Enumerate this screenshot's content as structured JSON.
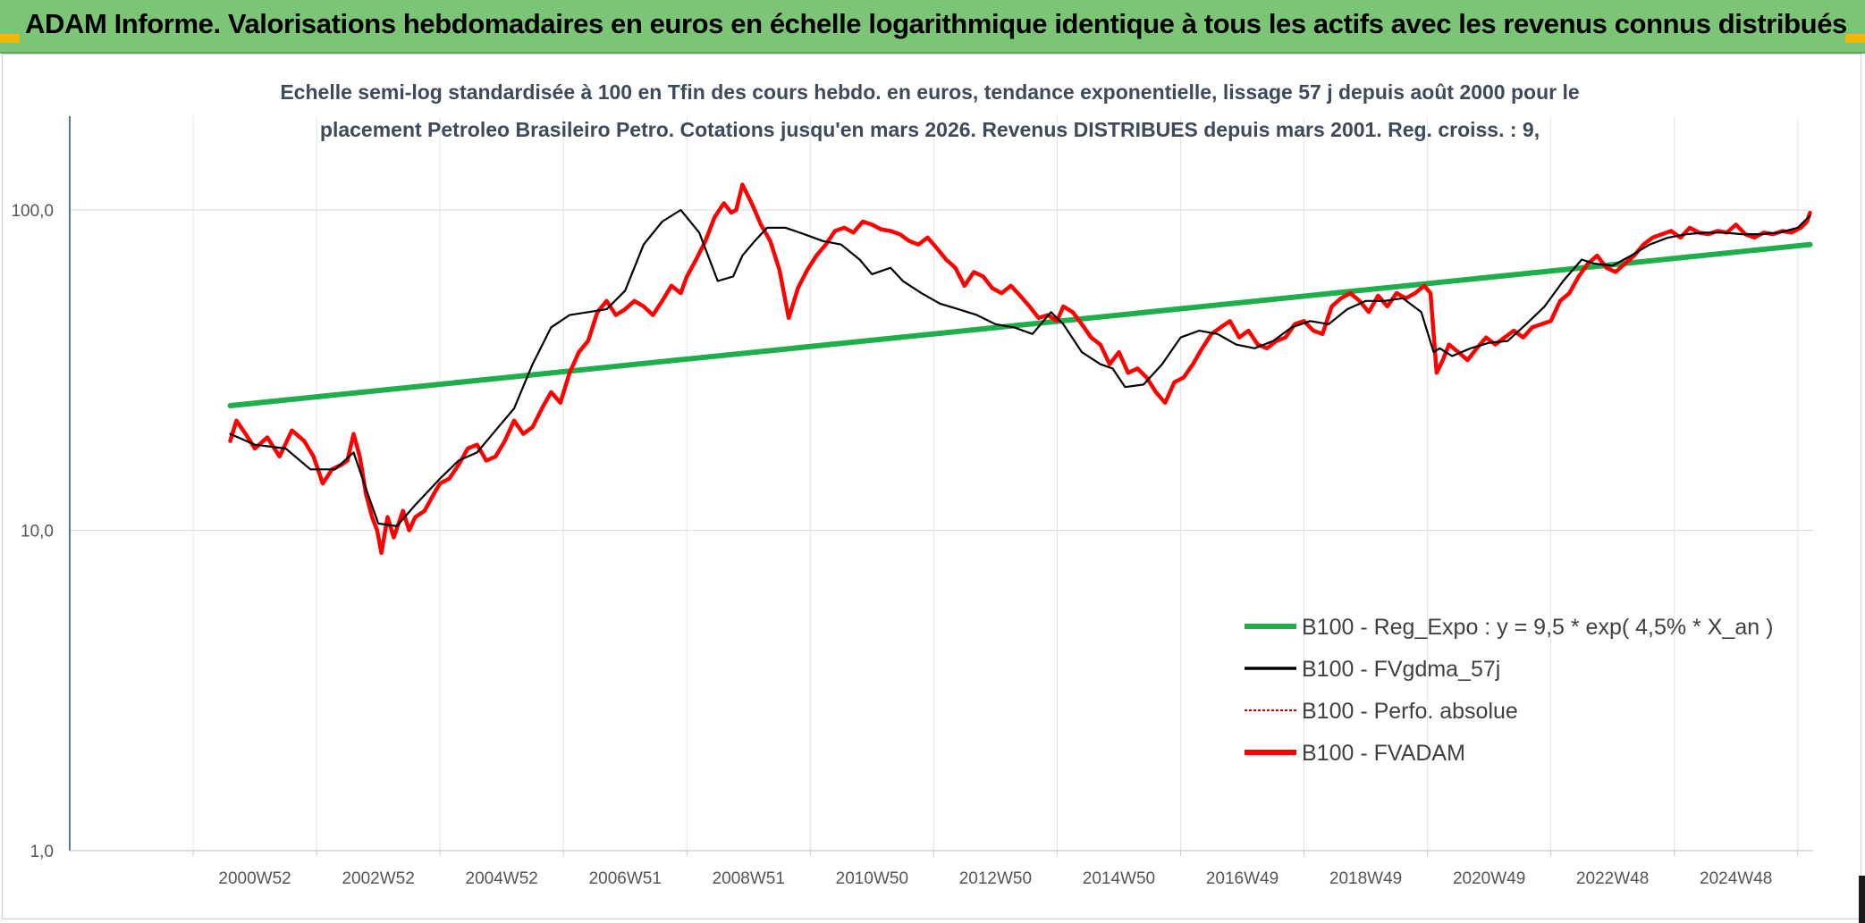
{
  "header": {
    "title": "ADAM Informe. Valorisations hebdomadaires en euros en échelle logarithmique identique à tous les actifs avec les revenus connus distribués"
  },
  "chart_data": {
    "type": "line",
    "subtitle_lines": [
      "Echelle semi-log standardisée à 100 en Tfin des cours hebdo. en euros, tendance exponentielle, lissage 57 j depuis août 2000 pour le",
      "placement Petroleo Brasileiro Petro. Cotations jusqu'en mars 2026. Revenus DISTRIBUES depuis mars 2001. Reg. croiss. : 9,"
    ],
    "y_scale": "log",
    "ylim": [
      1,
      180
    ],
    "y_ticks": [
      {
        "value": 1,
        "label": "1,0"
      },
      {
        "value": 10,
        "label": "10,0"
      },
      {
        "value": 100,
        "label": "100,0"
      }
    ],
    "xlim": [
      1998.0,
      2026.25
    ],
    "x_ticks": [
      {
        "value": 2001.0,
        "label": "2000W52"
      },
      {
        "value": 2003.0,
        "label": "2002W52"
      },
      {
        "value": 2005.0,
        "label": "2004W52"
      },
      {
        "value": 2007.0,
        "label": "2006W51"
      },
      {
        "value": 2009.0,
        "label": "2008W51"
      },
      {
        "value": 2011.0,
        "label": "2010W50"
      },
      {
        "value": 2013.0,
        "label": "2012W50"
      },
      {
        "value": 2015.0,
        "label": "2014W50"
      },
      {
        "value": 2017.0,
        "label": "2016W49"
      },
      {
        "value": 2019.0,
        "label": "2018W49"
      },
      {
        "value": 2021.0,
        "label": "2020W49"
      },
      {
        "value": 2023.0,
        "label": "2022W48"
      },
      {
        "value": 2025.0,
        "label": "2024W48"
      }
    ],
    "grid": true,
    "legend_position": "bottom-right",
    "colors": {
      "regression": "#1fae4b",
      "moving_average": "#000000",
      "absolute": "#c00000",
      "adam": "#ff0000"
    },
    "series": [
      {
        "name": "B100 - Reg_Expo : y = 9,5 * exp( 4,5% *  X_an )",
        "kind": "regression",
        "x": [
          2000.6,
          2026.2
        ],
        "y": [
          24.5,
          78
        ]
      },
      {
        "name": "B100 - FVgdma_57j",
        "kind": "moving_average",
        "x": [
          2000.6,
          2001.0,
          2001.5,
          2001.9,
          2002.3,
          2002.6,
          2002.8,
          2003.0,
          2003.3,
          2003.6,
          2004.0,
          2004.3,
          2004.6,
          2004.9,
          2005.2,
          2005.5,
          2005.8,
          2006.1,
          2006.4,
          2006.7,
          2007.0,
          2007.3,
          2007.6,
          2007.9,
          2008.2,
          2008.5,
          2008.75,
          2008.9,
          2009.1,
          2009.3,
          2009.6,
          2009.9,
          2010.2,
          2010.5,
          2010.8,
          2011.0,
          2011.3,
          2011.5,
          2011.8,
          2012.1,
          2012.4,
          2012.7,
          2013.0,
          2013.3,
          2013.6,
          2013.9,
          2014.1,
          2014.4,
          2014.7,
          2014.9,
          2015.1,
          2015.4,
          2015.7,
          2016.0,
          2016.3,
          2016.6,
          2016.9,
          2017.2,
          2017.5,
          2017.8,
          2018.1,
          2018.4,
          2018.7,
          2019.0,
          2019.3,
          2019.6,
          2019.9,
          2020.1,
          2020.2,
          2020.4,
          2020.7,
          2021.0,
          2021.3,
          2021.6,
          2021.9,
          2022.2,
          2022.5,
          2022.7,
          2023.0,
          2023.3,
          2023.6,
          2023.9,
          2024.2,
          2024.5,
          2024.8,
          2025.1,
          2025.4,
          2025.7,
          2026.0,
          2026.2
        ],
        "y": [
          20,
          18.5,
          18,
          15.5,
          15.5,
          17.5,
          13.5,
          10.5,
          10.3,
          12,
          14.5,
          16.5,
          17.5,
          20.5,
          24,
          33,
          43,
          47,
          48,
          49,
          56,
          78,
          92,
          100,
          85,
          60,
          62,
          72,
          80,
          88,
          88,
          84,
          80,
          78,
          70,
          63,
          66,
          60,
          55,
          51,
          49,
          47,
          44,
          43,
          41,
          48,
          44,
          36,
          33,
          32,
          28,
          28.5,
          33,
          40,
          42,
          41,
          38,
          37,
          39,
          43,
          45,
          44,
          49,
          52,
          52,
          53,
          48,
          36,
          37,
          35,
          37,
          38.5,
          39,
          44,
          50,
          60,
          70,
          68,
          67,
          72,
          78,
          82,
          84,
          85,
          85,
          84,
          84,
          85,
          88,
          96
        ]
      },
      {
        "name": "B100 - Perfo. absolue",
        "kind": "absolute",
        "x": [],
        "y": []
      },
      {
        "name": "B100 - FVADAM",
        "kind": "adam",
        "x": [
          2000.6,
          2000.7,
          2000.85,
          2001.0,
          2001.2,
          2001.4,
          2001.6,
          2001.8,
          2001.95,
          2002.1,
          2002.25,
          2002.4,
          2002.5,
          2002.6,
          2002.7,
          2002.8,
          2002.9,
          2002.98,
          2003.05,
          2003.15,
          2003.25,
          2003.4,
          2003.5,
          2003.6,
          2003.75,
          2003.9,
          2004.0,
          2004.15,
          2004.3,
          2004.45,
          2004.6,
          2004.75,
          2004.9,
          2005.05,
          2005.2,
          2005.35,
          2005.5,
          2005.65,
          2005.8,
          2005.95,
          2006.1,
          2006.25,
          2006.4,
          2006.55,
          2006.7,
          2006.85,
          2007.0,
          2007.15,
          2007.3,
          2007.45,
          2007.6,
          2007.75,
          2007.9,
          2008.0,
          2008.15,
          2008.3,
          2008.45,
          2008.6,
          2008.72,
          2008.8,
          2008.9,
          2009.05,
          2009.2,
          2009.35,
          2009.5,
          2009.65,
          2009.8,
          2009.95,
          2010.1,
          2010.25,
          2010.4,
          2010.55,
          2010.7,
          2010.85,
          2011.0,
          2011.15,
          2011.3,
          2011.45,
          2011.6,
          2011.75,
          2011.9,
          2012.05,
          2012.2,
          2012.35,
          2012.5,
          2012.65,
          2012.8,
          2012.95,
          2013.1,
          2013.25,
          2013.4,
          2013.55,
          2013.7,
          2013.85,
          2014.0,
          2014.1,
          2014.25,
          2014.4,
          2014.55,
          2014.7,
          2014.85,
          2015.0,
          2015.15,
          2015.3,
          2015.45,
          2015.6,
          2015.75,
          2015.9,
          2016.05,
          2016.2,
          2016.35,
          2016.5,
          2016.65,
          2016.8,
          2016.95,
          2017.1,
          2017.25,
          2017.4,
          2017.55,
          2017.7,
          2017.85,
          2018.0,
          2018.15,
          2018.3,
          2018.45,
          2018.6,
          2018.75,
          2018.9,
          2019.05,
          2019.2,
          2019.35,
          2019.5,
          2019.65,
          2019.8,
          2019.95,
          2020.05,
          2020.15,
          2020.25,
          2020.35,
          2020.5,
          2020.65,
          2020.8,
          2020.95,
          2021.1,
          2021.25,
          2021.4,
          2021.55,
          2021.7,
          2021.85,
          2022.0,
          2022.15,
          2022.3,
          2022.45,
          2022.6,
          2022.75,
          2022.9,
          2023.05,
          2023.2,
          2023.35,
          2023.5,
          2023.65,
          2023.8,
          2023.95,
          2024.1,
          2024.25,
          2024.4,
          2024.55,
          2024.7,
          2024.85,
          2025.0,
          2025.15,
          2025.3,
          2025.45,
          2025.6,
          2025.75,
          2025.9,
          2026.05,
          2026.15,
          2026.2
        ],
        "y": [
          19,
          22,
          20,
          18,
          19.5,
          17,
          20.5,
          19,
          17,
          14,
          15.5,
          16,
          16.5,
          20,
          17,
          13,
          11,
          10,
          8.5,
          11,
          9.5,
          11.5,
          10,
          11,
          11.5,
          13,
          14,
          14.5,
          16,
          18,
          18.5,
          16.5,
          17,
          19,
          22,
          20,
          21,
          24,
          27,
          25,
          31,
          36,
          39,
          48,
          52,
          47,
          49,
          52,
          50,
          47,
          52,
          58,
          55,
          62,
          70,
          80,
          95,
          105,
          98,
          100,
          120,
          105,
          90,
          80,
          65,
          46,
          57,
          65,
          72,
          78,
          86,
          88,
          85,
          92,
          90,
          87,
          86,
          84,
          80,
          78,
          82,
          76,
          70,
          66,
          58,
          64,
          62,
          57,
          55,
          58,
          54,
          50,
          46,
          47,
          45,
          50,
          48,
          44,
          40,
          38,
          33,
          36,
          31,
          32,
          30,
          27,
          25,
          29,
          30,
          33,
          37,
          41,
          43,
          45,
          40,
          42,
          38,
          37,
          39,
          40,
          44,
          45,
          42,
          41,
          50,
          53,
          55,
          52,
          48,
          54,
          50,
          55,
          53,
          55,
          58,
          55,
          31,
          34,
          38,
          36,
          34,
          37,
          40,
          38,
          40,
          42,
          40,
          43,
          44,
          45,
          52,
          55,
          62,
          68,
          72,
          66,
          64,
          68,
          72,
          78,
          82,
          84,
          86,
          82,
          88,
          85,
          84,
          86,
          85,
          90,
          84,
          82,
          85,
          84,
          86,
          85,
          88,
          92,
          98
        ]
      }
    ]
  }
}
